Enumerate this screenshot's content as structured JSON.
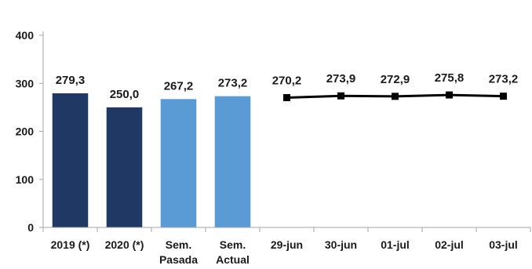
{
  "chart_data": {
    "type": "bar+line",
    "title": "",
    "xlabel": "",
    "ylabel": "",
    "ylim": [
      0,
      400
    ],
    "yticks": [
      "0",
      "100",
      "200",
      "300",
      "400"
    ],
    "grid": false,
    "legend": "none",
    "colors": {
      "dark_bar": "#1f3864",
      "light_bar": "#5b9bd5",
      "line": "#000000",
      "axis": "#a6a6a6"
    },
    "bars": {
      "categories": [
        [
          "2019 (*)"
        ],
        [
          "2020 (*)"
        ],
        [
          "Sem.",
          "Pasada"
        ],
        [
          "Sem.",
          "Actual"
        ]
      ],
      "values": [
        279.3,
        250.0,
        267.2,
        273.2
      ],
      "labels": [
        "279,3",
        "250,0",
        "267,2",
        "273,2"
      ],
      "color_keys": [
        "dark_bar",
        "dark_bar",
        "light_bar",
        "light_bar"
      ]
    },
    "line": {
      "categories": [
        "29-jun",
        "30-jun",
        "01-jul",
        "02-jul",
        "03-jul"
      ],
      "values": [
        270.2,
        273.9,
        272.9,
        275.8,
        273.2
      ],
      "labels": [
        "270,2",
        "273,9",
        "272,9",
        "275,8",
        "273,2"
      ]
    }
  }
}
